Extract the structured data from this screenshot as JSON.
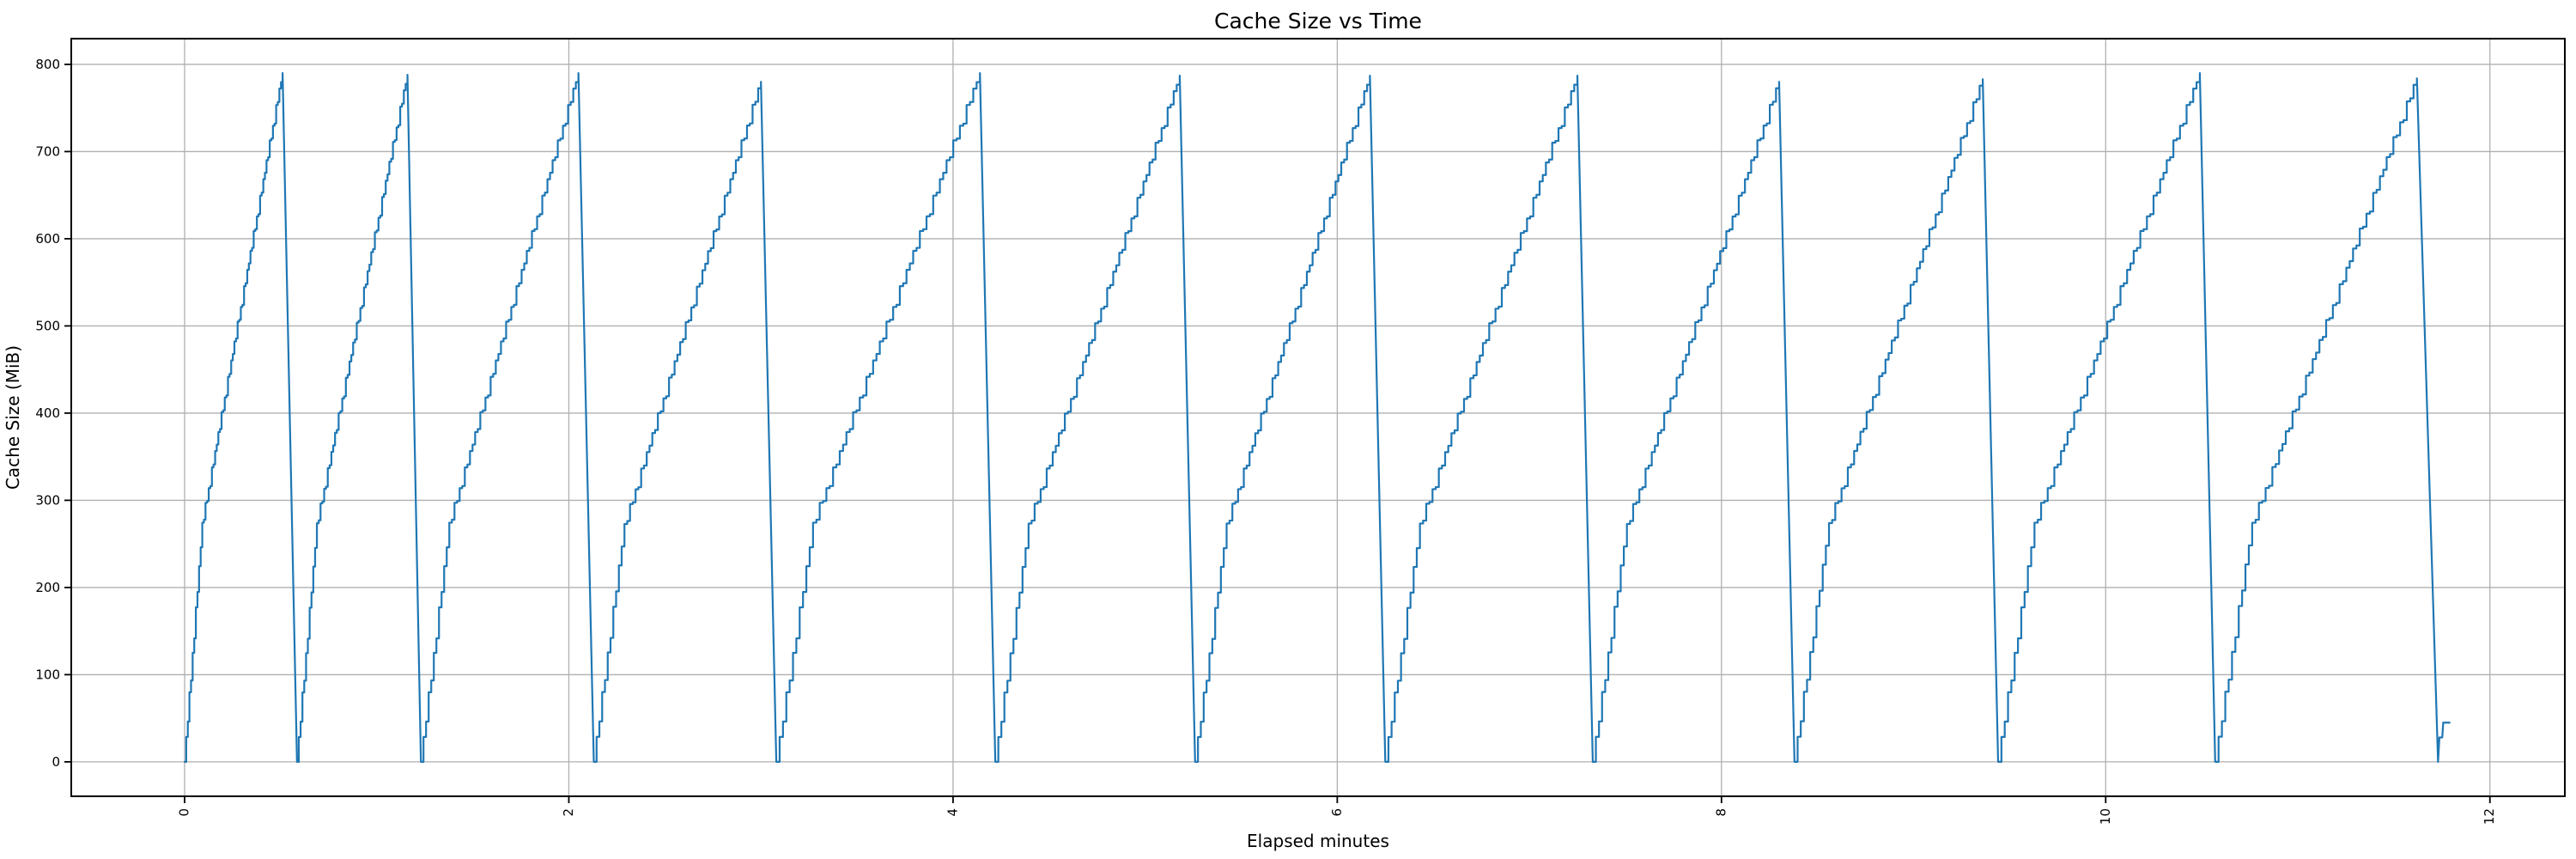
{
  "chart_data": {
    "type": "line",
    "style": "sawtooth-staircase",
    "title": "Cache Size vs Time",
    "xlabel": "Elapsed minutes",
    "ylabel": "Cache Size (MiB)",
    "x_ticks": [
      0,
      2,
      4,
      6,
      8,
      10,
      12
    ],
    "y_ticks": [
      0,
      100,
      200,
      300,
      400,
      500,
      600,
      700,
      800
    ],
    "xlim": [
      -0.59,
      12.39
    ],
    "ylim": [
      -39.5,
      829.5
    ],
    "grid": true,
    "legend": "none",
    "line_color": "#1f77b4",
    "grid_color": "#b0b0b0",
    "spine_color": "#000000",
    "cycles": [
      {
        "start": 0.0,
        "peak_time": 0.51,
        "peak_value": 790,
        "fall_end": 0.585
      },
      {
        "start": 0.585,
        "peak_time": 1.16,
        "peak_value": 788,
        "fall_end": 1.23
      },
      {
        "start": 1.23,
        "peak_time": 2.05,
        "peak_value": 790,
        "fall_end": 2.13
      },
      {
        "start": 2.13,
        "peak_time": 3.0,
        "peak_value": 780,
        "fall_end": 3.08
      },
      {
        "start": 3.08,
        "peak_time": 4.14,
        "peak_value": 790,
        "fall_end": 4.22
      },
      {
        "start": 4.22,
        "peak_time": 5.18,
        "peak_value": 787,
        "fall_end": 5.26
      },
      {
        "start": 5.26,
        "peak_time": 6.17,
        "peak_value": 787,
        "fall_end": 6.25
      },
      {
        "start": 6.25,
        "peak_time": 7.25,
        "peak_value": 787,
        "fall_end": 7.33
      },
      {
        "start": 7.33,
        "peak_time": 8.3,
        "peak_value": 780,
        "fall_end": 8.38
      },
      {
        "start": 8.38,
        "peak_time": 9.36,
        "peak_value": 783,
        "fall_end": 9.44
      },
      {
        "start": 9.44,
        "peak_time": 10.49,
        "peak_value": 790,
        "fall_end": 10.57
      },
      {
        "start": 10.57,
        "peak_time": 11.62,
        "peak_value": 784,
        "fall_end": 11.73
      }
    ],
    "tail_points": [
      [
        11.73,
        0
      ],
      [
        11.737,
        28
      ],
      [
        11.752,
        28
      ],
      [
        11.757,
        45
      ],
      [
        11.79,
        45
      ]
    ]
  }
}
